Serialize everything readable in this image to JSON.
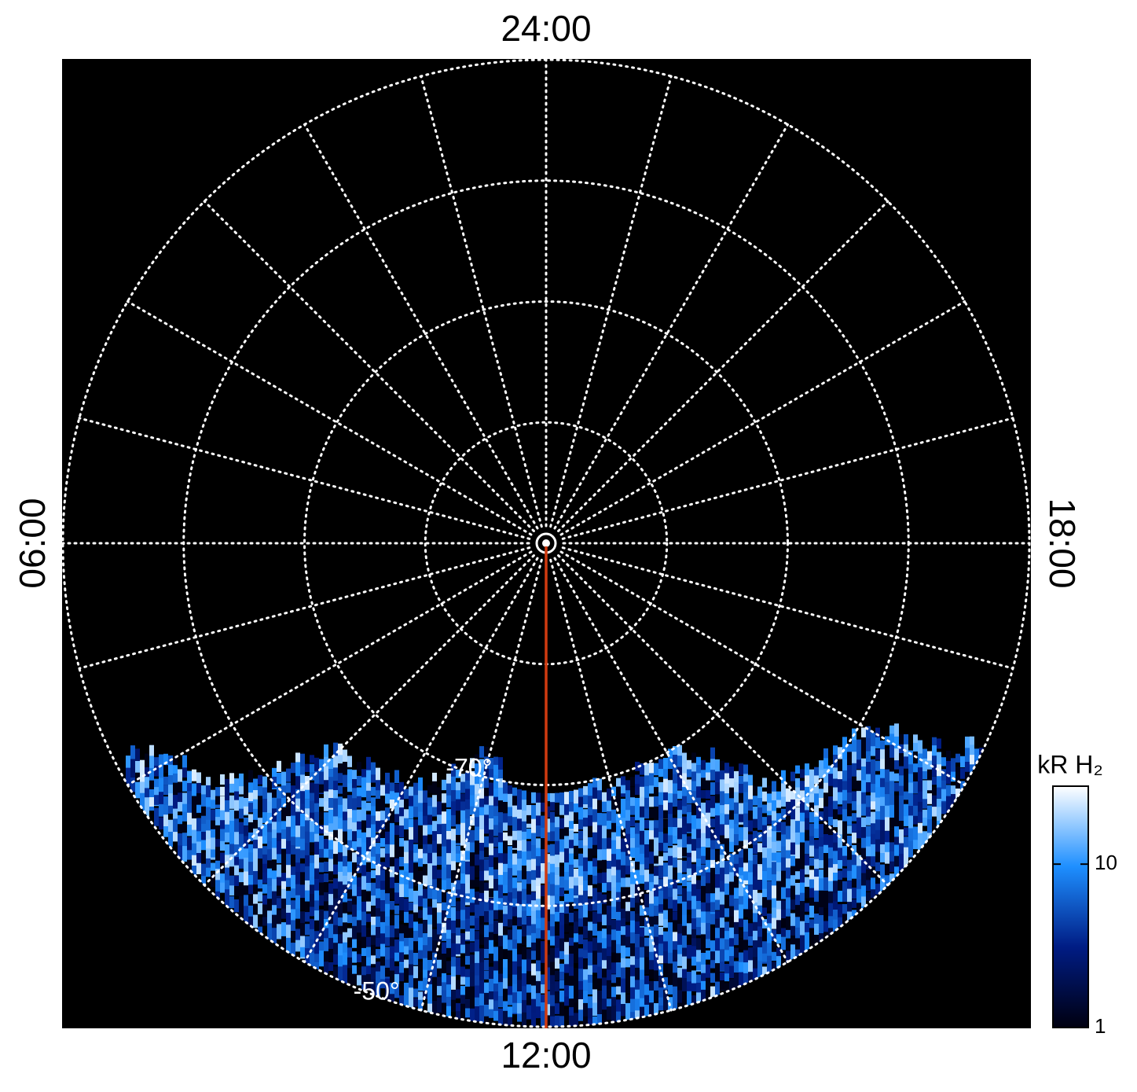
{
  "chart_data": {
    "type": "polar-image",
    "ltlim": [
      0,
      24
    ],
    "lt_ticks": [
      {
        "value": 24,
        "label": "24:00"
      },
      {
        "value": 6,
        "label": "06:00"
      },
      {
        "value": 12,
        "label": "12:00"
      },
      {
        "value": 18,
        "label": "18:00"
      }
    ],
    "rlim": [
      -90,
      -50
    ],
    "rticks": [
      -80,
      -70,
      -60,
      -50
    ],
    "rtick_labels": [
      {
        "value": -70,
        "label": "-70°"
      },
      {
        "value": -50,
        "label": "-50°"
      }
    ],
    "grid": true,
    "colorbar": {
      "label": "kR H₂",
      "log": true,
      "ylim": [
        1,
        30
      ],
      "yticks": [
        1,
        10
      ],
      "colormap": [
        "#000010",
        "#001c84",
        "#1e8fff",
        "#ffffff"
      ]
    },
    "track_color": "#d03a10"
  }
}
